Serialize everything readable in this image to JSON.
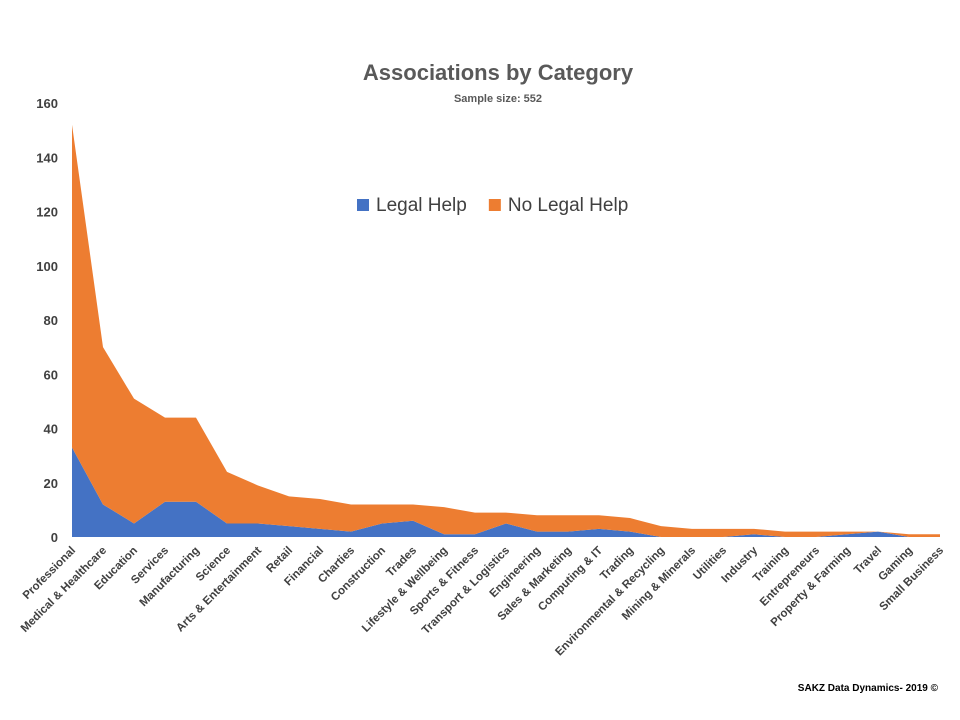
{
  "chart_data": {
    "type": "area",
    "stacked": true,
    "title": "Associations by Category",
    "subtitle": "Sample size: 552",
    "ylim": [
      0,
      160
    ],
    "yticks": [
      0,
      20,
      40,
      60,
      80,
      100,
      120,
      140,
      160
    ],
    "grid": false,
    "legend_position": "top-center-inside",
    "categories": [
      "Professional",
      "Medical & Healthcare",
      "Education",
      "Services",
      "Manufacturing",
      "Science",
      "Arts & Entertainment",
      "Retail",
      "Financial",
      "Charties",
      "Construction",
      "Trades",
      "Lifestyle & Wellbeing",
      "Sports & Fitness",
      "Transport & Logistics",
      "Engineering",
      "Sales & Marketing",
      "Computing & IT",
      "Trading",
      "Environmental & Recycling",
      "Mining & Minerals",
      "Utilities",
      "Industry",
      "Training",
      "Entrepreneurs",
      "Property & Farming",
      "Travel",
      "Gaming",
      "Small Business"
    ],
    "series": [
      {
        "name": "Legal Help",
        "color": "#4472c4",
        "values": [
          33,
          12,
          5,
          13,
          13,
          5,
          5,
          4,
          3,
          2,
          5,
          6,
          1,
          1,
          5,
          2,
          2,
          3,
          2,
          0,
          0,
          0,
          1,
          0,
          0,
          1,
          2,
          0,
          0
        ]
      },
      {
        "name": "No Legal Help",
        "color": "#ed7d31",
        "values": [
          119,
          58,
          46,
          31,
          31,
          19,
          14,
          11,
          11,
          10,
          7,
          6,
          10,
          8,
          4,
          6,
          6,
          5,
          5,
          4,
          3,
          3,
          2,
          2,
          2,
          1,
          0,
          1,
          1
        ]
      }
    ]
  },
  "footer": {
    "credit": "SAKZ Data Dynamics- 2019 ©"
  }
}
